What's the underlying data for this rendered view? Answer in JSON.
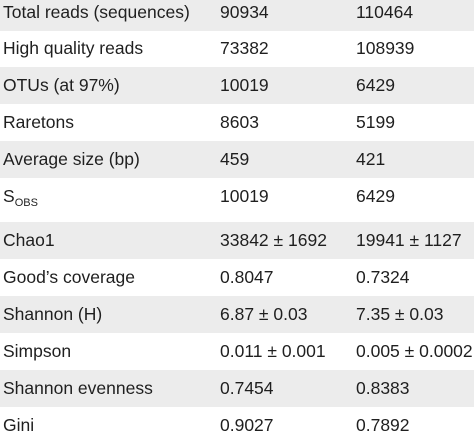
{
  "rows": [
    {
      "label": "Total reads (sequences)",
      "v1": "90934",
      "v2": "110464"
    },
    {
      "label": "High quality reads",
      "v1": "73382",
      "v2": "108939"
    },
    {
      "label": "OTUs (at 97%)",
      "v1": "10019",
      "v2": "6429"
    },
    {
      "label": "Raretons",
      "v1": "8603",
      "v2": "5199"
    },
    {
      "label": "Average size (bp)",
      "v1": "459",
      "v2": "421"
    },
    {
      "label": "S",
      "label_sub": "OBS",
      "v1": "10019",
      "v2": "6429"
    },
    {
      "label": "Chao1",
      "v1": "33842 ± 1692",
      "v2": "19941 ± 1127"
    },
    {
      "label": "Good’s coverage",
      "v1": "0.8047",
      "v2": "0.7324"
    },
    {
      "label": "Shannon (H)",
      "v1": "6.87 ± 0.03",
      "v2": "7.35 ± 0.03"
    },
    {
      "label": "Simpson",
      "v1": "0.011 ± 0.001",
      "v2": "0.005 ± 0.0002"
    },
    {
      "label": "Shannon evenness",
      "v1": "0.7454",
      "v2": "0.8383"
    },
    {
      "label": "Gini",
      "v1": "0.9027",
      "v2": "0.7892"
    }
  ],
  "colors": {
    "shaded_row": "#ececec",
    "text": "#1f1f1f"
  }
}
